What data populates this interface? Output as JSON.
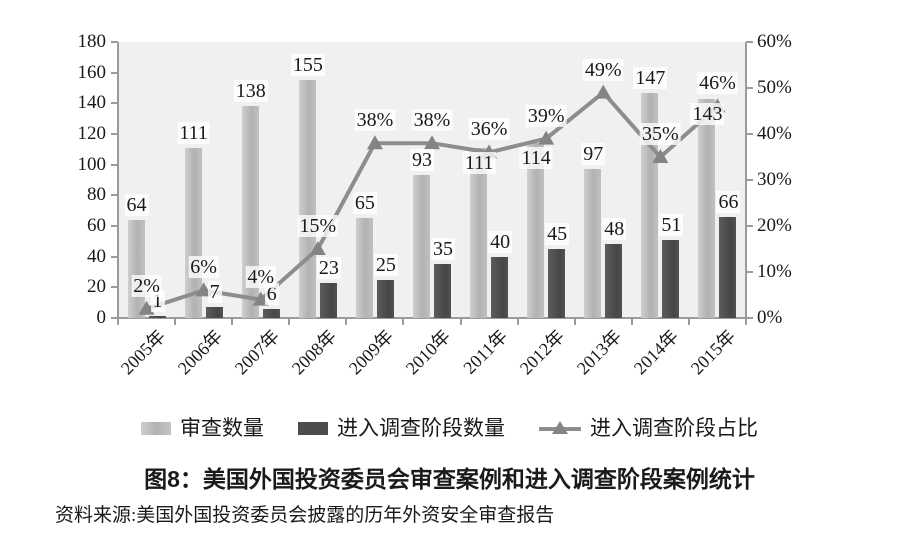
{
  "figure": {
    "title": "图8：美国外国投资委员会审查案例和进入调查阶段案例统计",
    "source": "资料来源:美国外国投资委员会披露的历年外资安全审查报告"
  },
  "legend": {
    "items": [
      {
        "label": "审查数量",
        "swatch": "bar-light"
      },
      {
        "label": "进入调查阶段数量",
        "swatch": "bar-dark"
      },
      {
        "label": "进入调查阶段占比",
        "swatch": "line-triangle"
      }
    ]
  },
  "chart_data": {
    "type": "combo-bar-line",
    "title": "图8：美国外国投资委员会审查案例和进入调查阶段案例统计",
    "categories": [
      "2005年",
      "2006年",
      "2007年",
      "2008年",
      "2009年",
      "2010年",
      "2011年",
      "2012年",
      "2013年",
      "2014年",
      "2015年"
    ],
    "series": [
      {
        "name": "审查数量",
        "type": "bar",
        "axis": "left",
        "color": "#bdbdbd",
        "values": [
          64,
          111,
          138,
          155,
          65,
          93,
          111,
          114,
          97,
          147,
          143
        ]
      },
      {
        "name": "进入调查阶段数量",
        "type": "bar",
        "axis": "left",
        "color": "#4d4d4d",
        "values": [
          1,
          7,
          6,
          23,
          25,
          35,
          40,
          45,
          48,
          51,
          66
        ]
      },
      {
        "name": "进入调查阶段占比",
        "type": "line",
        "axis": "right",
        "color": "#8d8d8d",
        "marker": "triangle",
        "values_percent": [
          2,
          6,
          4,
          15,
          38,
          38,
          36,
          39,
          49,
          35,
          46
        ],
        "point_labels": [
          "2%",
          "6%",
          "4%",
          "15%",
          "38%",
          "38%",
          "36%",
          "39%",
          "49%",
          "35%",
          "46%"
        ]
      }
    ],
    "left_axis": {
      "min": 0,
      "max": 180,
      "step": 20,
      "tick_labels": [
        "180",
        "160",
        "140",
        "120",
        "100",
        "80",
        "60",
        "40",
        "20",
        "0"
      ]
    },
    "right_axis": {
      "min_percent": 0,
      "max_percent": 60,
      "step_percent": 10,
      "tick_labels": [
        "60%",
        "50%",
        "40%",
        "30%",
        "20%",
        "10%",
        "0%"
      ]
    },
    "grid": false,
    "legend_position": "bottom",
    "plot_background": "#f1f0ef"
  }
}
